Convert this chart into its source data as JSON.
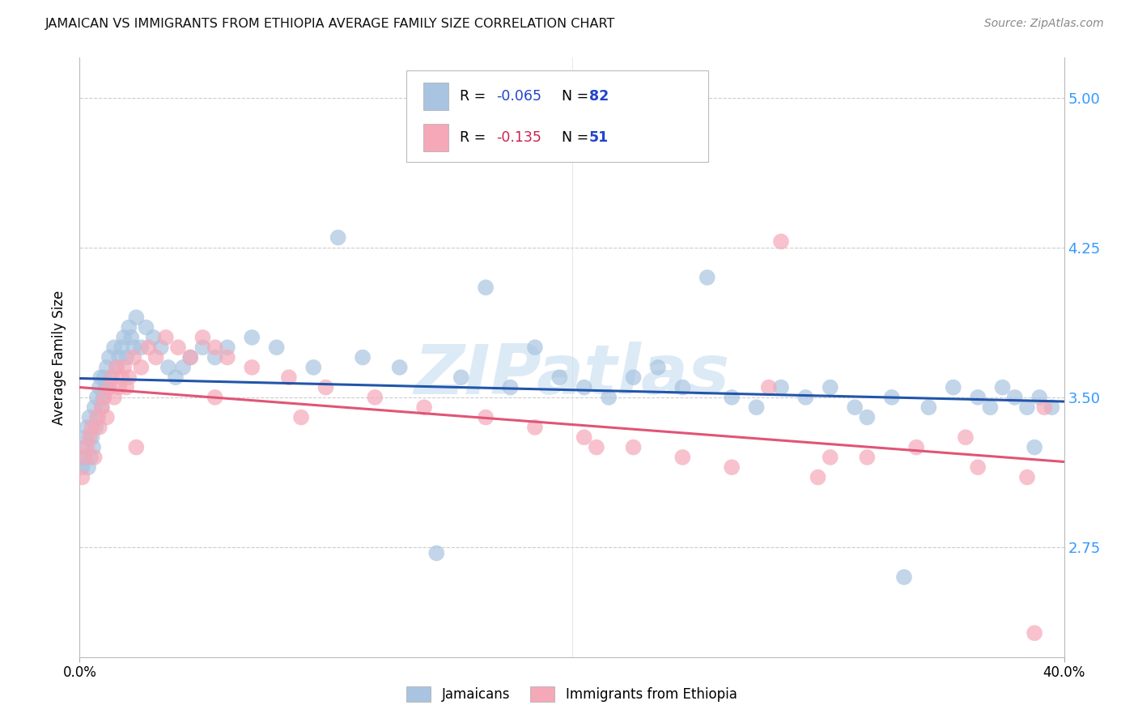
{
  "title": "JAMAICAN VS IMMIGRANTS FROM ETHIOPIA AVERAGE FAMILY SIZE CORRELATION CHART",
  "source": "Source: ZipAtlas.com",
  "ylabel": "Average Family Size",
  "yticks": [
    2.75,
    3.5,
    4.25,
    5.0
  ],
  "ytick_labels": [
    "2.75",
    "3.50",
    "4.25",
    "5.00"
  ],
  "legend_label1": "Jamaicans",
  "legend_label2": "Immigrants from Ethiopia",
  "r1_val": "-0.065",
  "n1_val": "82",
  "r2_val": "-0.135",
  "n2_val": "51",
  "watermark": "ZIPatlas",
  "background_color": "#ffffff",
  "scatter_color1": "#a8c4e0",
  "scatter_color2": "#f4a8b8",
  "line_color1": "#2255aa",
  "line_color2": "#e05575",
  "r_color1": "#2244cc",
  "r_color2": "#cc2255",
  "n_color": "#2244cc",
  "grid_color": "#cccccc",
  "xmin": 0,
  "xmax": 40,
  "ymin": 2.2,
  "ymax": 5.2,
  "jamaicans_x": [
    0.1,
    0.15,
    0.2,
    0.25,
    0.3,
    0.35,
    0.4,
    0.45,
    0.5,
    0.55,
    0.6,
    0.65,
    0.7,
    0.75,
    0.8,
    0.85,
    0.9,
    0.95,
    1.0,
    1.05,
    1.1,
    1.15,
    1.2,
    1.3,
    1.4,
    1.5,
    1.6,
    1.7,
    1.8,
    1.9,
    2.0,
    2.1,
    2.2,
    2.3,
    2.5,
    2.7,
    3.0,
    3.3,
    3.6,
    3.9,
    4.2,
    4.5,
    5.0,
    5.5,
    6.0,
    7.0,
    8.0,
    9.5,
    10.5,
    11.5,
    13.0,
    14.5,
    15.5,
    16.5,
    17.5,
    18.5,
    19.5,
    20.5,
    21.5,
    22.5,
    23.5,
    24.5,
    25.5,
    26.5,
    27.5,
    28.5,
    29.5,
    30.5,
    31.5,
    32.0,
    33.0,
    34.5,
    35.5,
    36.5,
    37.0,
    37.5,
    38.0,
    38.5,
    39.0,
    39.5,
    33.5,
    38.8
  ],
  "jamaicans_y": [
    3.15,
    3.2,
    3.25,
    3.3,
    3.35,
    3.15,
    3.4,
    3.2,
    3.3,
    3.25,
    3.45,
    3.35,
    3.5,
    3.4,
    3.55,
    3.6,
    3.45,
    3.5,
    3.6,
    3.55,
    3.65,
    3.55,
    3.7,
    3.6,
    3.75,
    3.65,
    3.7,
    3.75,
    3.8,
    3.7,
    3.85,
    3.8,
    3.75,
    3.9,
    3.75,
    3.85,
    3.8,
    3.75,
    3.65,
    3.6,
    3.65,
    3.7,
    3.75,
    3.7,
    3.75,
    3.8,
    3.75,
    3.65,
    4.3,
    3.7,
    3.65,
    2.72,
    3.6,
    4.05,
    3.55,
    3.75,
    3.6,
    3.55,
    3.5,
    3.6,
    3.65,
    3.55,
    4.1,
    3.5,
    3.45,
    3.55,
    3.5,
    3.55,
    3.45,
    3.4,
    3.5,
    3.45,
    3.55,
    3.5,
    3.45,
    3.55,
    3.5,
    3.45,
    3.5,
    3.45,
    2.6,
    3.25
  ],
  "ethiopia_x": [
    0.1,
    0.2,
    0.3,
    0.4,
    0.5,
    0.6,
    0.7,
    0.8,
    0.9,
    1.0,
    1.1,
    1.2,
    1.3,
    1.4,
    1.5,
    1.6,
    1.7,
    1.8,
    1.9,
    2.0,
    2.2,
    2.5,
    2.8,
    3.1,
    3.5,
    4.0,
    4.5,
    5.0,
    5.5,
    6.0,
    7.0,
    8.5,
    10.0,
    12.0,
    14.0,
    16.5,
    18.5,
    20.5,
    22.5,
    24.5,
    26.5,
    28.0,
    30.0,
    32.0,
    34.0,
    36.5,
    38.5,
    28.5,
    39.2,
    30.5,
    36.0
  ],
  "ethiopia_y": [
    3.1,
    3.2,
    3.25,
    3.3,
    3.35,
    3.2,
    3.4,
    3.35,
    3.45,
    3.5,
    3.4,
    3.55,
    3.6,
    3.5,
    3.65,
    3.55,
    3.6,
    3.65,
    3.55,
    3.6,
    3.7,
    3.65,
    3.75,
    3.7,
    3.8,
    3.75,
    3.7,
    3.8,
    3.75,
    3.7,
    3.65,
    3.6,
    3.55,
    3.5,
    3.45,
    3.4,
    3.35,
    3.3,
    3.25,
    3.2,
    3.15,
    3.55,
    3.1,
    3.2,
    3.25,
    3.15,
    3.1,
    4.28,
    3.45,
    3.2,
    3.3
  ],
  "ethiopia_x_low": [
    2.3,
    5.5,
    9.0,
    21.0,
    38.8
  ],
  "ethiopia_y_low": [
    3.25,
    3.5,
    3.4,
    3.25,
    2.32
  ]
}
